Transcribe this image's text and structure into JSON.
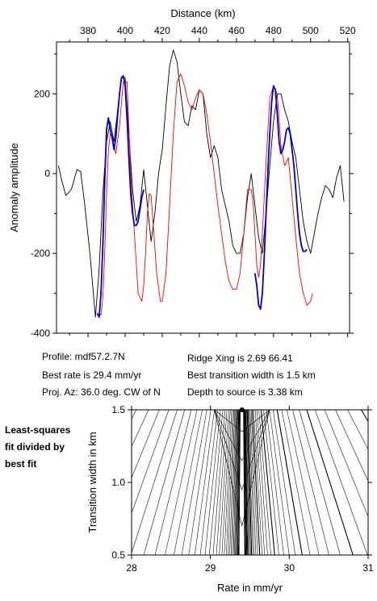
{
  "chart_data": [
    {
      "type": "line",
      "xlabel": "Distance (km)",
      "ylabel": "Anomaly amplitude",
      "xlim": [
        363,
        521
      ],
      "ylim": [
        -400,
        330
      ],
      "xticks": [
        380,
        400,
        420,
        440,
        460,
        480,
        500,
        520
      ],
      "yticks": [
        200,
        0,
        -200,
        -400
      ],
      "grid": false,
      "series": [
        {
          "color": "#000000",
          "x": [
            364,
            366,
            368,
            371,
            374,
            376,
            378,
            381,
            384,
            386,
            388,
            390,
            392,
            394,
            396,
            398,
            400,
            402,
            404,
            406,
            408,
            410,
            412,
            414,
            416,
            418,
            420,
            422,
            424,
            426,
            428,
            430,
            432,
            434,
            436,
            438,
            440,
            442,
            444,
            446,
            448,
            450,
            452,
            454,
            456,
            458,
            460,
            462,
            464,
            466,
            468,
            470,
            472,
            474,
            476,
            478,
            480,
            482,
            484,
            486,
            488,
            490,
            492,
            494,
            496,
            498,
            500,
            502,
            504,
            506,
            508,
            510,
            512,
            514,
            516,
            518
          ],
          "y": [
            20,
            -20,
            -55,
            -40,
            10,
            5,
            -70,
            -200,
            -360,
            -240,
            -50,
            80,
            130,
            80,
            160,
            240,
            240,
            100,
            -40,
            -120,
            -80,
            10,
            -80,
            -170,
            -100,
            0,
            60,
            170,
            270,
            310,
            280,
            200,
            130,
            120,
            170,
            160,
            210,
            200,
            100,
            40,
            70,
            40,
            -40,
            -80,
            -120,
            -180,
            -200,
            -200,
            -150,
            -60,
            0,
            -80,
            -160,
            -200,
            -100,
            20,
            130,
            200,
            200,
            160,
            130,
            80,
            40,
            -40,
            -120,
            -170,
            -200,
            -150,
            -100,
            -60,
            -30,
            -40,
            -60,
            -10,
            20,
            -70
          ]
        },
        {
          "color": "#ff0000",
          "x": [
            386,
            387,
            388,
            389,
            390,
            391,
            392,
            393,
            395,
            397,
            399,
            401,
            402,
            403,
            405,
            407,
            409,
            410,
            411,
            412,
            413,
            414,
            415,
            417,
            419,
            420,
            422,
            424,
            426,
            428,
            430,
            432,
            434,
            436,
            438,
            440,
            442,
            444,
            446,
            448,
            450,
            452,
            454,
            456,
            458,
            460,
            462,
            464,
            466,
            468,
            469,
            470,
            471,
            472,
            473,
            474,
            476,
            478,
            480,
            482,
            484,
            486,
            488,
            490,
            492,
            494,
            496,
            498,
            500,
            501
          ],
          "y": [
            -350,
            -355,
            -310,
            -200,
            -50,
            60,
            100,
            90,
            50,
            120,
            230,
            230,
            120,
            0,
            -150,
            -300,
            -320,
            -280,
            -200,
            -100,
            -50,
            -55,
            -120,
            -250,
            -320,
            -320,
            -250,
            -80,
            100,
            230,
            250,
            220,
            180,
            160,
            190,
            210,
            200,
            150,
            80,
            0,
            -80,
            -150,
            -220,
            -270,
            -290,
            -290,
            -250,
            -150,
            -40,
            -40,
            -70,
            -150,
            -230,
            -260,
            -230,
            -150,
            30,
            190,
            220,
            200,
            70,
            20,
            40,
            -60,
            -160,
            -250,
            -300,
            -330,
            -320,
            -300
          ]
        },
        {
          "color": "#0000cc",
          "x": [
            385,
            386,
            387,
            388,
            389,
            390,
            391,
            392,
            393,
            394,
            395,
            396,
            397,
            398,
            399,
            400,
            401,
            402,
            403,
            404,
            405,
            406,
            407,
            408,
            409,
            410
          ],
          "y": [
            -350,
            -360,
            -300,
            -180,
            -20,
            110,
            140,
            110,
            90,
            60,
            90,
            150,
            200,
            240,
            245,
            220,
            140,
            40,
            -50,
            -100,
            -130,
            -130,
            -120,
            -90,
            -60,
            -40
          ]
        },
        {
          "color": "#0000cc",
          "x": [
            470,
            471,
            472,
            473,
            474,
            475,
            476,
            477,
            478,
            479,
            480,
            481,
            482,
            483,
            484,
            485,
            486,
            487,
            488,
            489,
            490,
            491,
            492,
            493,
            494,
            495,
            496,
            497,
            498
          ],
          "y": [
            -250,
            -280,
            -330,
            -340,
            -300,
            -210,
            -100,
            10,
            100,
            180,
            220,
            210,
            150,
            80,
            50,
            60,
            80,
            110,
            115,
            100,
            60,
            20,
            -40,
            -100,
            -150,
            -180,
            -195,
            -195,
            -190
          ]
        }
      ]
    },
    {
      "type": "contour",
      "xlabel": "Rate in mm/yr",
      "ylabel": "Transition width in km",
      "xlim": [
        28,
        31
      ],
      "ylim": [
        0.5,
        1.5
      ],
      "xticks": [
        28,
        29,
        30,
        31
      ],
      "yticks": [
        0.5,
        1.0,
        1.5
      ],
      "grid": false,
      "best_fit": {
        "x": 29.4,
        "y": 1.5
      }
    }
  ],
  "info": {
    "profile": "Profile: mdf57.2.7N",
    "best_rate": "Best rate is 29.4 mm/yr",
    "proj_az": "Proj. Az: 36.0 deg. CW of N",
    "ridge_xing": "Ridge Xing is 2.69 66.41",
    "transition": "Best transition width is 1.5 km",
    "depth": "Depth to source is   3.38 km"
  },
  "side_label": {
    "line1": "Least-squares",
    "line2": "fit divided by",
    "line3": "best fit"
  }
}
